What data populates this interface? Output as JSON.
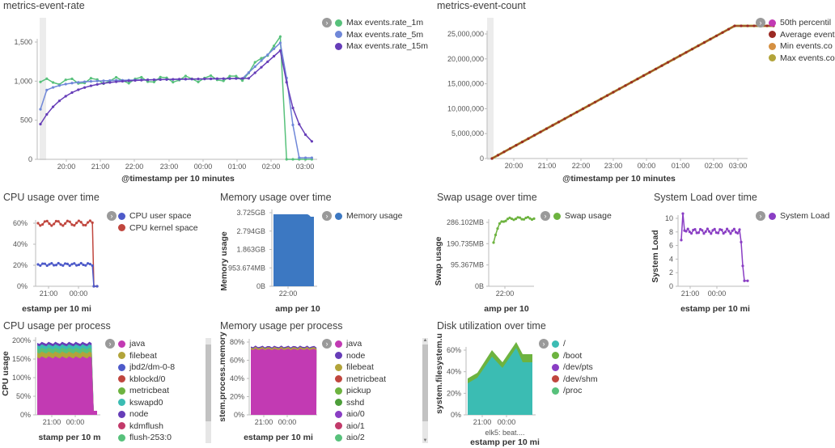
{
  "colors": {
    "green": "#57c17b",
    "lightblue": "#6f87d8",
    "purple": "#663db8",
    "blue": "#4d5ac9",
    "red": "#c0463e",
    "brandblue": "#3c78c2",
    "lime": "#6db33f",
    "violet": "#8a3ec4",
    "magenta": "#c23ab3",
    "olive": "#b2a43a",
    "teal": "#3bbcb3",
    "orange": "#d59042",
    "maroon": "#9b2a24"
  },
  "panels": {
    "rate": {
      "title": "metrics-event-rate",
      "legend": [
        "Max events.rate_1m",
        "Max events.rate_5m",
        "Max events.rate_15m"
      ],
      "legend_colors": [
        "#57c17b",
        "#6f87d8",
        "#663db8"
      ],
      "xaxis_title": "@timestamp per 10 minutes",
      "yticks": [
        "1,500",
        "1,000",
        "500",
        "0"
      ],
      "xticks": [
        "20:00",
        "21:00",
        "22:00",
        "23:00",
        "00:00",
        "01:00",
        "02:00",
        "03:00"
      ]
    },
    "count": {
      "title": "metrics-event-count",
      "legend": [
        "50th percentil",
        "Average event",
        "Min events.co",
        "Max events.co"
      ],
      "legend_colors": [
        "#c23ab3",
        "#9b2a24",
        "#d59042",
        "#b2a43a"
      ],
      "xaxis_title": "@timestamp per 10 minutes",
      "yticks": [
        "25,000,000",
        "20,000,000",
        "15,000,000",
        "10,000,000",
        "5,000,000",
        "0"
      ],
      "xticks": [
        "20:00",
        "21:00",
        "22:00",
        "23:00",
        "00:00",
        "01:00",
        "02:00",
        "03:00"
      ]
    },
    "cpu": {
      "title": "CPU usage over time",
      "legend": [
        "CPU user space",
        "CPU kernel space"
      ],
      "legend_colors": [
        "#4d5ac9",
        "#c0463e"
      ],
      "xaxis_title": "estamp per 10 mi",
      "yticks": [
        "60%",
        "40%",
        "20%",
        "0%"
      ],
      "xticks": [
        "21:00",
        "00:00"
      ]
    },
    "mem": {
      "title": "Memory usage over time",
      "legend": [
        "Memory usage"
      ],
      "legend_colors": [
        "#3c78c2"
      ],
      "xaxis_title": "amp per 10",
      "yaxis_title": "Memory usage",
      "yticks": [
        "3.725GB",
        "2.794GB",
        "1.863GB",
        "953.674MB",
        "0B"
      ],
      "xticks": [
        "22:00"
      ]
    },
    "swap": {
      "title": "Swap usage over time",
      "legend": [
        "Swap usage"
      ],
      "legend_colors": [
        "#6db33f"
      ],
      "xaxis_title": "amp per 10",
      "yaxis_title": "Swap usage",
      "yticks": [
        "286.102MB",
        "190.735MB",
        "95.367MB",
        "0B"
      ],
      "xticks": [
        "22:00"
      ]
    },
    "load": {
      "title": "System Load over time",
      "legend": [
        "System Load"
      ],
      "legend_colors": [
        "#8a3ec4"
      ],
      "xaxis_title": "estamp per 10 mi",
      "yaxis_title": "System Load",
      "yticks": [
        "10",
        "8",
        "6",
        "4",
        "2",
        "0"
      ],
      "xticks": [
        "21:00",
        "00:00"
      ]
    },
    "cpuproc": {
      "title": "CPU usage per process",
      "legend": [
        "java",
        "filebeat",
        "jbd2/dm-0-8",
        "kblockd/0",
        "metricbeat",
        "kswapd0",
        "node",
        "kdmflush",
        "flush-253:0"
      ],
      "legend_colors": [
        "#c23ab3",
        "#b2a43a",
        "#4d5ac9",
        "#c0463e",
        "#6db33f",
        "#3bbcb3",
        "#663db8",
        "#c23a6a",
        "#57c17b"
      ],
      "xaxis_title": "stamp per 10 m",
      "yaxis_title": "CPU usage",
      "yticks": [
        "200%",
        "150%",
        "100%",
        "50%",
        "0%"
      ],
      "xticks": [
        "21:00",
        "00:00"
      ]
    },
    "memproc": {
      "title": "Memory usage per process",
      "legend": [
        "java",
        "node",
        "filebeat",
        "metricbeat",
        "pickup",
        "sshd",
        "aio/0",
        "aio/1",
        "aio/2"
      ],
      "legend_colors": [
        "#c23ab3",
        "#663db8",
        "#b2a43a",
        "#c0463e",
        "#6db33f",
        "#4d9e3a",
        "#8a3ec4",
        "#c23a6a",
        "#57c17b"
      ],
      "xaxis_title": "estamp per 10 mi",
      "yaxis_title": "stem.process.memory",
      "yticks": [
        "80%",
        "60%",
        "40%",
        "20%",
        "0%"
      ],
      "xticks": [
        "21:00",
        "00:00"
      ]
    },
    "disk": {
      "title": "Disk utilization over time",
      "legend": [
        "/",
        "/boot",
        "/dev/pts",
        "/dev/shm",
        "/proc"
      ],
      "legend_colors": [
        "#3bbcb3",
        "#6db33f",
        "#8a3ec4",
        "#c0463e",
        "#57c17b"
      ],
      "xaxis_title": "estamp per 10 mi",
      "xaxis_sub": "elk5: beat....",
      "yaxis_title": "system.filesystem.u",
      "yticks": [
        "60%",
        "40%",
        "20%",
        "0%"
      ],
      "xticks": [
        "21:00",
        "00:00"
      ]
    }
  },
  "toggle_icon": "chevron-right-icon",
  "toggle_glyph": "›",
  "scroll_up": "▲",
  "scroll_down": "▼"
}
